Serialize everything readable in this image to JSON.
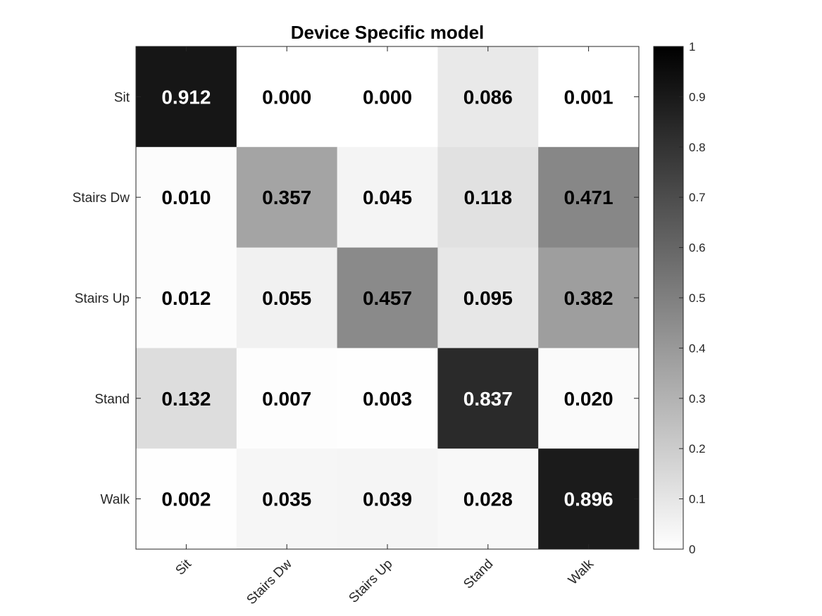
{
  "chart_data": {
    "type": "heatmap",
    "title": "Device Specific model",
    "rows": [
      "Sit",
      "Stairs Dw",
      "Stairs Up",
      "Stand",
      "Walk"
    ],
    "columns": [
      "Sit",
      "Stairs Dw",
      "Stairs Up",
      "Stand",
      "Walk"
    ],
    "values": [
      [
        0.912,
        0.0,
        0.0,
        0.086,
        0.001
      ],
      [
        0.01,
        0.357,
        0.045,
        0.118,
        0.471
      ],
      [
        0.012,
        0.055,
        0.457,
        0.095,
        0.382
      ],
      [
        0.132,
        0.007,
        0.003,
        0.837,
        0.02
      ],
      [
        0.002,
        0.035,
        0.039,
        0.028,
        0.896
      ]
    ],
    "value_format": "0.000",
    "colormap": "grayscale (white = 0, black = 1)",
    "colorbar": {
      "range": [
        0,
        1
      ],
      "ticks": [
        "0",
        "0.1",
        "0.2",
        "0.3",
        "0.4",
        "0.5",
        "0.6",
        "0.7",
        "0.8",
        "0.9",
        "1"
      ]
    },
    "colors": {
      "low": "#ffffff",
      "high": "#000000",
      "axis": "#262626"
    }
  }
}
